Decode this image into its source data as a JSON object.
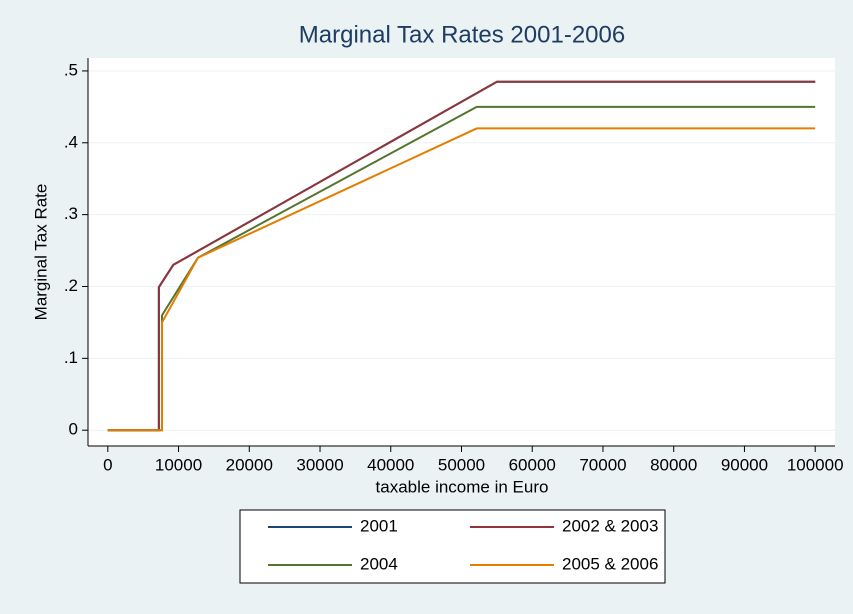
{
  "chart_data": {
    "type": "line",
    "title": "Marginal Tax Rates 2001-2006",
    "x_label": "taxable income in Euro",
    "y_label": "Marginal Tax Rate",
    "xlim": [
      -2800,
      102800
    ],
    "ylim": [
      -0.022,
      0.518
    ],
    "xticks": [
      0,
      10000,
      20000,
      30000,
      40000,
      50000,
      60000,
      70000,
      80000,
      90000,
      100000
    ],
    "yticks": [
      0,
      {
        "value": 0.1,
        "label": ".1"
      },
      {
        "value": 0.2,
        "label": ".2"
      },
      {
        "value": 0.3,
        "label": ".3"
      },
      {
        "value": 0.4,
        "label": ".4"
      },
      {
        "value": 0.5,
        "label": ".5"
      }
    ],
    "grid": true,
    "series": [
      {
        "name": "2001",
        "color": "#1a476f",
        "x": [
          0,
          7206,
          7206,
          9251,
          55008,
          100000
        ],
        "values": [
          0,
          0,
          0.199,
          0.23,
          0.485,
          0.485
        ]
      },
      {
        "name": "2002 & 2003",
        "color": "#90353b",
        "x": [
          0,
          7235,
          7235,
          9251,
          55008,
          100000
        ],
        "values": [
          0,
          0,
          0.199,
          0.23,
          0.485,
          0.485
        ]
      },
      {
        "name": "2004",
        "color": "#55752f",
        "x": [
          0,
          7664,
          7664,
          12739,
          52151,
          100000
        ],
        "values": [
          0,
          0,
          0.16,
          0.24,
          0.45,
          0.45
        ]
      },
      {
        "name": "2005 & 2006",
        "color": "#e37e00",
        "x": [
          0,
          7664,
          7664,
          12739,
          52151,
          100000
        ],
        "values": [
          0,
          0,
          0.15,
          0.24,
          0.42,
          0.42
        ]
      }
    ]
  }
}
